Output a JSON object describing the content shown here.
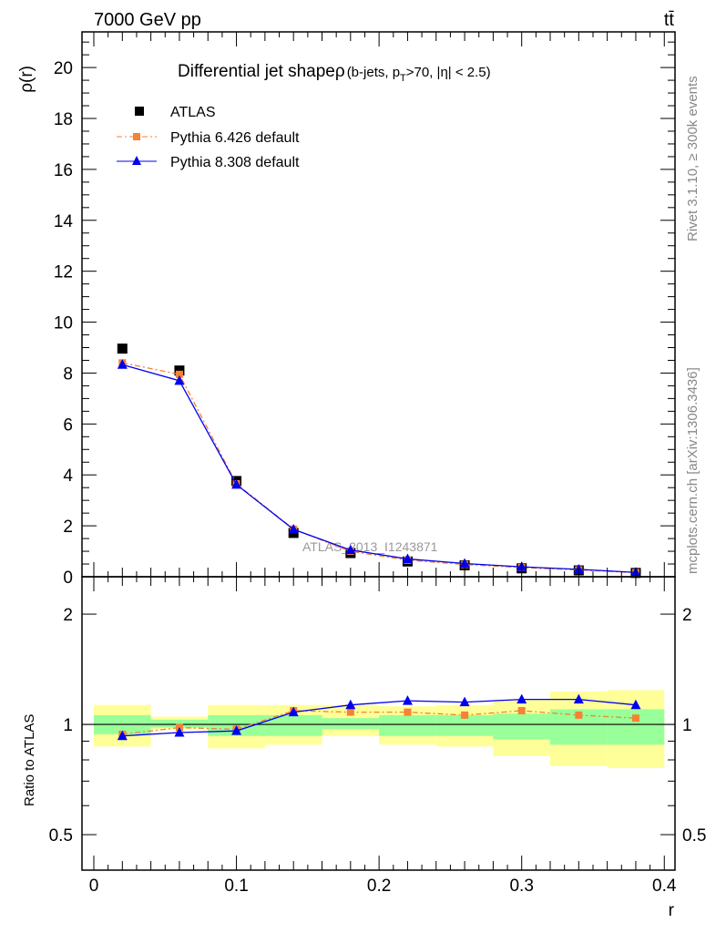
{
  "header": {
    "energy": "7000 GeV pp",
    "process": "tt̄"
  },
  "side_labels": {
    "rivet": "Rivet 3.1.10, ≥ 300k events",
    "source": "mcplots.cern.ch [arXiv:1306.3436]"
  },
  "colors": {
    "atlas": "#000000",
    "py6": "#f58235",
    "py8": "#0000ee",
    "band_outer": "#ffff99",
    "band_inner": "#99ff99"
  },
  "chart_data": [
    {
      "type": "line",
      "title": "Differential jet shapeρ",
      "title_sub": "(b-jets, p",
      "title_sub2": "T",
      "title_sub3": ">70, |η| < 2.5)",
      "watermark": "ATLAS_2013_I1243871",
      "ylabel": "ρ(r)",
      "xlim": [
        -0.0083,
        0.4075
      ],
      "ylim": [
        0,
        21.4
      ],
      "yticks": [
        "0",
        "2",
        "4",
        "6",
        "8",
        "10",
        "12",
        "14",
        "16",
        "18",
        "20"
      ],
      "x": [
        0.02,
        0.06,
        0.1,
        0.14,
        0.18,
        0.22,
        0.26,
        0.3,
        0.34,
        0.38
      ],
      "legend_position": "top-left",
      "series": [
        {
          "name": "ATLAS",
          "values": [
            8.96,
            8.1,
            3.76,
            1.72,
            0.93,
            0.6,
            0.45,
            0.33,
            0.25,
            0.15
          ]
        },
        {
          "name": "Pythia 6.426 default",
          "values": [
            8.4,
            7.95,
            3.65,
            1.87,
            1.0,
            0.65,
            0.48,
            0.36,
            0.27,
            0.16
          ]
        },
        {
          "name": "Pythia 8.308 default",
          "values": [
            8.33,
            7.7,
            3.62,
            1.86,
            1.05,
            0.7,
            0.52,
            0.39,
            0.29,
            0.17
          ]
        }
      ]
    },
    {
      "type": "line",
      "ylabel": "Ratio to ATLAS",
      "xlabel": "r",
      "yscale": "log",
      "ylim": [
        0.4,
        2.53
      ],
      "yticks": [
        "0.5",
        "1",
        "2"
      ],
      "xticks": [
        "0",
        "0.1",
        "0.2",
        "0.3",
        "0.4"
      ],
      "x": [
        0.02,
        0.06,
        0.1,
        0.14,
        0.18,
        0.22,
        0.26,
        0.3,
        0.34,
        0.38
      ],
      "bin_edges": [
        0,
        0.04,
        0.08,
        0.12,
        0.16,
        0.2,
        0.24,
        0.28,
        0.32,
        0.36,
        0.4
      ],
      "band_outer": [
        [
          0.87,
          1.13
        ],
        [
          0.97,
          1.05
        ],
        [
          0.86,
          1.13
        ],
        [
          0.88,
          1.13
        ],
        [
          0.93,
          1.13
        ],
        [
          0.88,
          1.12
        ],
        [
          0.87,
          1.13
        ],
        [
          0.82,
          1.17
        ],
        [
          0.77,
          1.23
        ],
        [
          0.76,
          1.24
        ]
      ],
      "band_inner": [
        [
          0.94,
          1.06
        ],
        [
          0.98,
          1.03
        ],
        [
          0.93,
          1.06
        ],
        [
          0.93,
          1.06
        ],
        [
          0.97,
          1.04
        ],
        [
          0.93,
          1.06
        ],
        [
          0.93,
          1.06
        ],
        [
          0.91,
          1.07
        ],
        [
          0.88,
          1.1
        ],
        [
          0.88,
          1.1
        ]
      ],
      "series": [
        {
          "name": "Pythia 6.426 default",
          "values": [
            0.94,
            0.98,
            0.97,
            1.09,
            1.08,
            1.08,
            1.06,
            1.09,
            1.06,
            1.04
          ]
        },
        {
          "name": "Pythia 8.308 default",
          "values": [
            0.93,
            0.95,
            0.96,
            1.08,
            1.13,
            1.16,
            1.15,
            1.17,
            1.17,
            1.13
          ]
        }
      ]
    }
  ]
}
